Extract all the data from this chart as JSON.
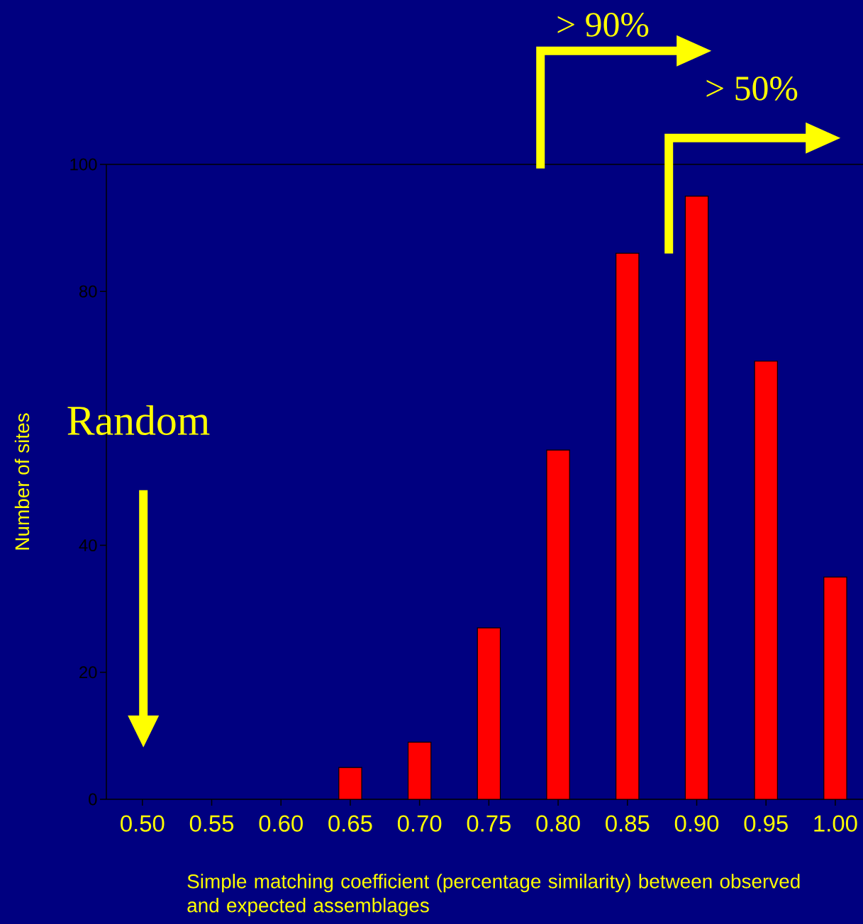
{
  "chart_data": {
    "type": "bar",
    "categories": [
      "0.50",
      "0.55",
      "0.60",
      "0.65",
      "0.70",
      "0.75",
      "0.80",
      "0.85",
      "0.90",
      "0.95",
      "1.00"
    ],
    "values": [
      0,
      0,
      0,
      5,
      9,
      27,
      55,
      86,
      95,
      69,
      35
    ],
    "color": "#ff0000",
    "xlabel": "Simple matching coefficient (percentage similarity) between observed and expected assemblages",
    "ylabel": "Number of sites",
    "ylim": [
      0,
      100
    ],
    "yticks": [
      0,
      20,
      40,
      {
        "value": 60,
        "label": null
      },
      80,
      100
    ],
    "annotations": [
      "> 90%",
      "> 50%",
      "Random"
    ]
  }
}
